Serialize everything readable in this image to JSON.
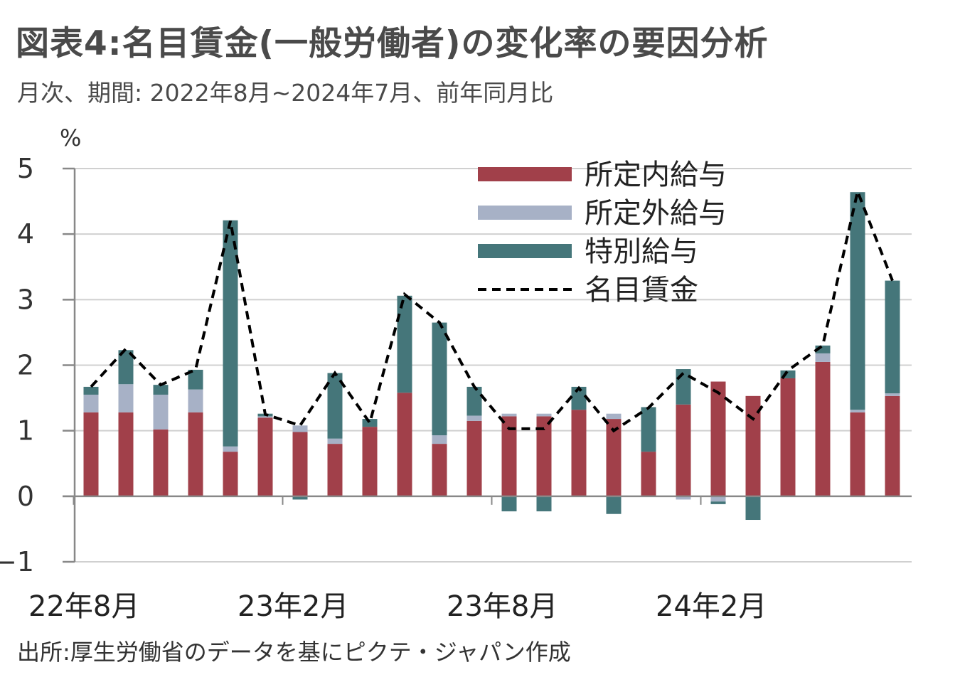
{
  "header": {
    "title": "図表4:名目賃金(一般労働者)の変化率の要因分析",
    "subtitle": "月次、期間: 2022年8月~2024年7月、前年同月比"
  },
  "footer": {
    "source": "出所:厚生労働省のデータを基にピクテ・ジャパン作成"
  },
  "colors": {
    "scheduled": "#A1404A",
    "overtime": "#A7B1C6",
    "special": "#45767A",
    "total_line": "#000000",
    "grid": "#D0D0D0",
    "axis": "#888888"
  },
  "chart_data": {
    "type": "bar",
    "stacked": true,
    "yunit": "%",
    "ylim": [
      -1,
      5
    ],
    "yticks": [
      -1,
      0,
      1,
      2,
      3,
      4,
      5
    ],
    "grid": true,
    "legend_position": "top-right",
    "categories": [
      "2022-08",
      "2022-09",
      "2022-10",
      "2022-11",
      "2022-12",
      "2023-01",
      "2023-02",
      "2023-03",
      "2023-04",
      "2023-05",
      "2023-06",
      "2023-07",
      "2023-08",
      "2023-09",
      "2023-10",
      "2023-11",
      "2023-12",
      "2024-01",
      "2024-02",
      "2024-03",
      "2024-04",
      "2024-05",
      "2024-06",
      "2024-07"
    ],
    "xtick_labels": [
      {
        "index": 0,
        "label": "22年8月"
      },
      {
        "index": 6,
        "label": "23年2月"
      },
      {
        "index": 12,
        "label": "23年8月"
      },
      {
        "index": 18,
        "label": "24年2月"
      }
    ],
    "series": [
      {
        "name": "所定内給与",
        "kind": "bar",
        "values": [
          1.28,
          1.28,
          1.02,
          1.28,
          0.68,
          1.2,
          0.98,
          0.8,
          1.06,
          1.58,
          0.8,
          1.15,
          1.22,
          1.22,
          1.32,
          1.18,
          0.68,
          1.4,
          1.75,
          1.53,
          1.8,
          2.05,
          1.28,
          1.53
        ]
      },
      {
        "name": "所定外給与",
        "kind": "bar",
        "values": [
          0.27,
          0.43,
          0.53,
          0.35,
          0.08,
          0.02,
          0.1,
          0.08,
          0.0,
          0.0,
          0.13,
          0.08,
          0.04,
          0.04,
          0.0,
          0.08,
          0.0,
          -0.05,
          -0.08,
          0.0,
          0.0,
          0.13,
          0.04,
          0.04
        ]
      },
      {
        "name": "特別給与",
        "kind": "bar",
        "values": [
          0.12,
          0.52,
          0.15,
          0.3,
          3.45,
          0.04,
          -0.05,
          1.0,
          0.12,
          1.48,
          1.72,
          0.44,
          -0.23,
          -0.23,
          0.35,
          -0.27,
          0.68,
          0.54,
          -0.04,
          -0.36,
          0.12,
          0.12,
          3.32,
          1.72
        ]
      },
      {
        "name": "名目賃金",
        "kind": "line",
        "values": [
          1.67,
          2.25,
          1.7,
          1.93,
          4.2,
          1.25,
          1.08,
          1.88,
          1.12,
          3.08,
          2.65,
          1.67,
          1.03,
          1.03,
          1.65,
          1.0,
          1.35,
          1.88,
          1.58,
          1.18,
          1.92,
          2.3,
          4.65,
          3.29
        ]
      }
    ]
  }
}
